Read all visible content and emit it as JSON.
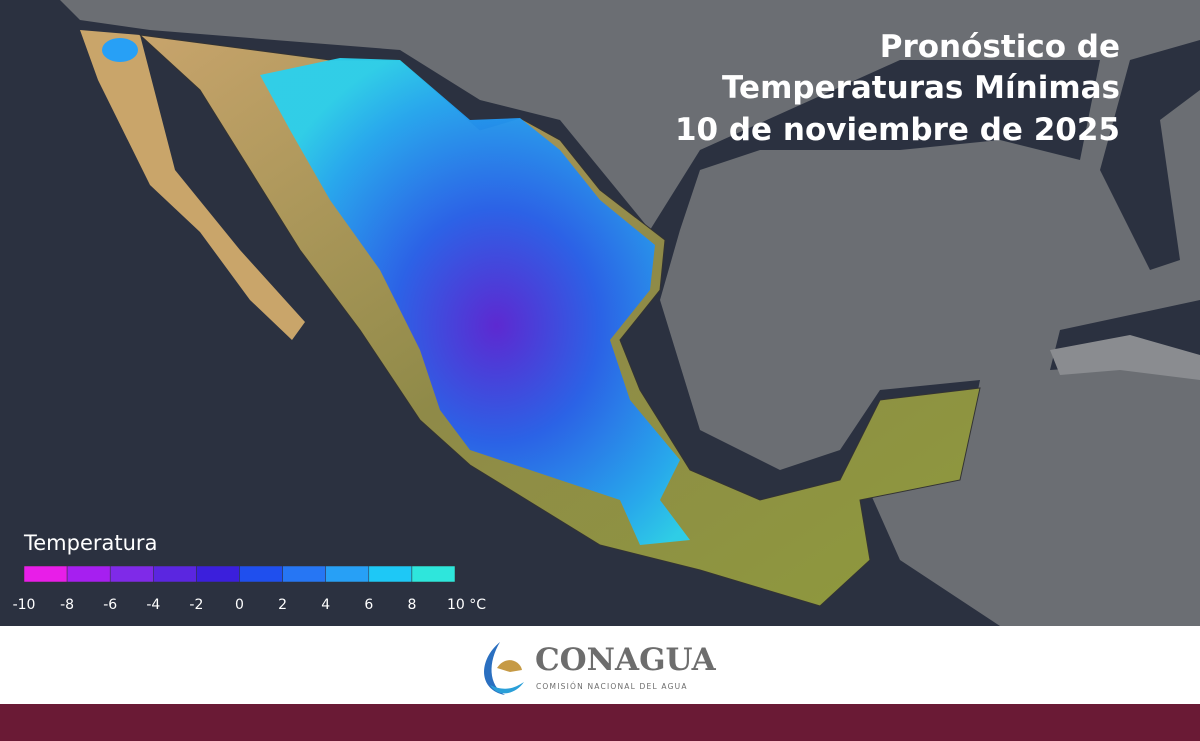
{
  "title": {
    "lines": [
      "Pronóstico de",
      "Temperaturas Mínimas",
      "10 de noviembre de 2025"
    ]
  },
  "legend": {
    "title": "Temperatura",
    "colors": [
      "#e81ee8",
      "#a61ff0",
      "#7f2ae8",
      "#5b26e0",
      "#3b1fdc",
      "#1f4fee",
      "#2676f4",
      "#27a0f6",
      "#1ec8f6",
      "#2ee6dc"
    ],
    "ticks": [
      -10,
      -8,
      -6,
      -4,
      -2,
      0,
      2,
      4,
      6,
      8,
      {
        "value": 10,
        "label": "10 °C"
      }
    ]
  },
  "footer": {
    "logo": "CONAGUA",
    "subtitle": "COMISIÓN NACIONAL DEL AGUA"
  }
}
